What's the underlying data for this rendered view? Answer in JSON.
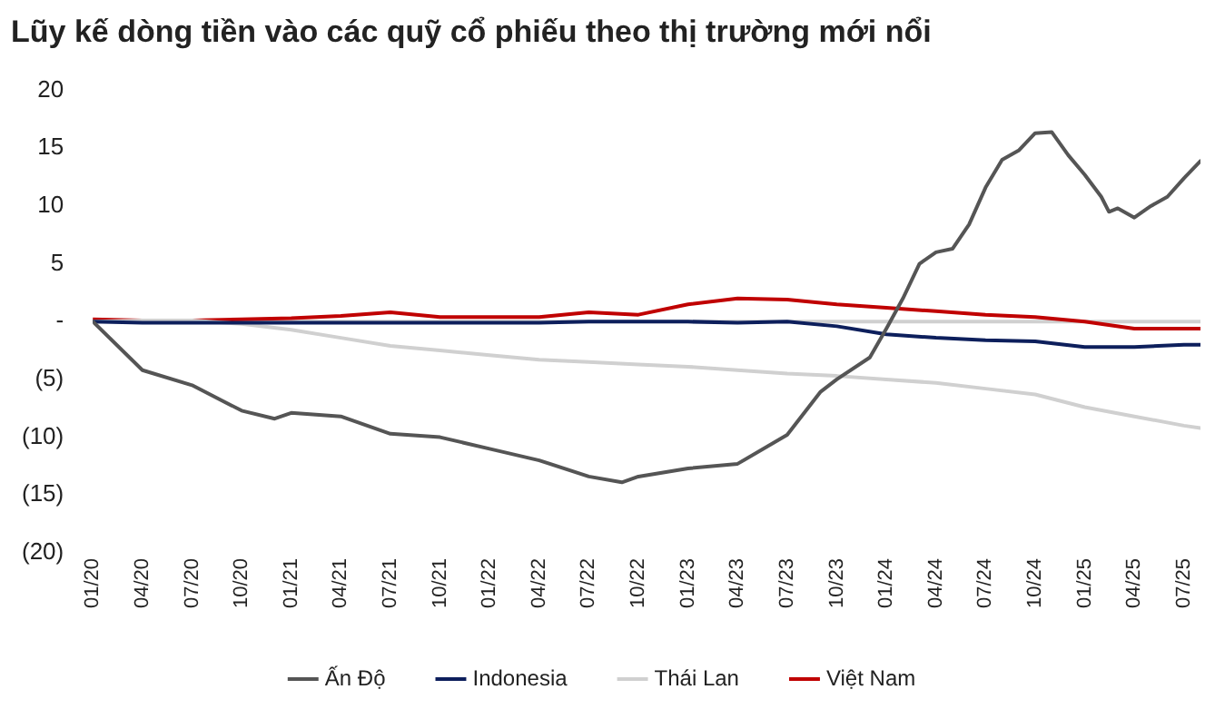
{
  "chart_data": {
    "type": "line",
    "title": "Lũy kế dòng tiền vào các quỹ cổ phiếu theo thị trường mới nổi",
    "x": [
      "2020-01",
      "2020-04",
      "2020-07",
      "2020-10",
      "2021-01",
      "2021-04",
      "2021-07",
      "2021-10",
      "2022-01",
      "2022-04",
      "2022-07",
      "2022-10",
      "2023-01",
      "2023-04",
      "2023-07",
      "2023-10",
      "2024-01",
      "2024-04",
      "2024-07",
      "2024-10",
      "2025-01",
      "2025-04",
      "2025-07",
      "2025-08"
    ],
    "series": [
      {
        "name": "Ấn Độ",
        "color": "#555555",
        "x": [
          "2020-01",
          "2020-04",
          "2020-07",
          "2020-10",
          "2020-12",
          "2021-01",
          "2021-04",
          "2021-07",
          "2021-10",
          "2022-01",
          "2022-04",
          "2022-07",
          "2022-09",
          "2022-10",
          "2023-01",
          "2023-04",
          "2023-07",
          "2023-09",
          "2023-10",
          "2023-12",
          "2024-01",
          "2024-02",
          "2024-03",
          "2024-04",
          "2024-05",
          "2024-06",
          "2024-07",
          "2024-08",
          "2024-09",
          "2024-10",
          "2024-11",
          "2024-12",
          "2025-01",
          "2025-02",
          "2025-02-15",
          "2025-03",
          "2025-04",
          "2025-05",
          "2025-06",
          "2025-07",
          "2025-08"
        ],
        "values": [
          0,
          -4.2,
          -5.5,
          -7.7,
          -8.4,
          -7.9,
          -8.2,
          -9.7,
          -10,
          -11,
          -12,
          -13.4,
          -13.9,
          -13.4,
          -12.7,
          -12.3,
          -9.8,
          -6.1,
          -5,
          -3.1,
          -0.6,
          2,
          5,
          6,
          6.3,
          8.4,
          11.6,
          14,
          14.8,
          16.3,
          16.4,
          14.4,
          12.7,
          10.8,
          9.5,
          9.8,
          9,
          10,
          10.8,
          12.4,
          13.9
        ]
      },
      {
        "name": "Indonesia",
        "color": "#0d1f5c",
        "values": [
          0,
          -0.1,
          -0.1,
          -0.1,
          -0.1,
          -0.1,
          -0.1,
          -0.1,
          -0.1,
          -0.1,
          0,
          0,
          0,
          -0.1,
          0,
          -0.4,
          -1.1,
          -1.4,
          -1.6,
          -1.7,
          -2.2,
          -2.2,
          -2,
          -2
        ]
      },
      {
        "name": "Thái Lan",
        "color": "#d0d0d0",
        "values": [
          0,
          0.1,
          0.1,
          -0.2,
          -0.7,
          -1.4,
          -2.1,
          -2.5,
          -2.9,
          -3.3,
          -3.5,
          -3.7,
          -3.9,
          -4.2,
          -4.5,
          -4.7,
          -5,
          -5.3,
          -5.8,
          -6.3,
          -7.4,
          -8.2,
          -9,
          -9.2
        ]
      },
      {
        "name": "Việt Nam",
        "color": "#c00000",
        "values": [
          0.2,
          0.1,
          0.1,
          0.2,
          0.3,
          0.5,
          0.8,
          0.4,
          0.4,
          0.4,
          0.8,
          0.6,
          1.5,
          2,
          1.9,
          1.5,
          1.2,
          0.9,
          0.6,
          0.4,
          0,
          -0.6,
          -0.6,
          -0.6
        ]
      }
    ],
    "xlim": [
      "2020-01",
      "2025-08"
    ],
    "xticks": [
      {
        "value": "2020-01",
        "label": "01/20"
      },
      {
        "value": "2020-04",
        "label": "04/20"
      },
      {
        "value": "2020-07",
        "label": "07/20"
      },
      {
        "value": "2020-10",
        "label": "10/20"
      },
      {
        "value": "2021-01",
        "label": "01/21"
      },
      {
        "value": "2021-04",
        "label": "04/21"
      },
      {
        "value": "2021-07",
        "label": "07/21"
      },
      {
        "value": "2021-10",
        "label": "10/21"
      },
      {
        "value": "2022-01",
        "label": "01/22"
      },
      {
        "value": "2022-04",
        "label": "04/22"
      },
      {
        "value": "2022-07",
        "label": "07/22"
      },
      {
        "value": "2022-10",
        "label": "10/22"
      },
      {
        "value": "2023-01",
        "label": "01/23"
      },
      {
        "value": "2023-04",
        "label": "04/23"
      },
      {
        "value": "2023-07",
        "label": "07/23"
      },
      {
        "value": "2023-10",
        "label": "10/23"
      },
      {
        "value": "2024-01",
        "label": "01/24"
      },
      {
        "value": "2024-04",
        "label": "04/24"
      },
      {
        "value": "2024-07",
        "label": "07/24"
      },
      {
        "value": "2024-10",
        "label": "10/24"
      },
      {
        "value": "2025-01",
        "label": "01/25"
      },
      {
        "value": "2025-04",
        "label": "04/25"
      },
      {
        "value": "2025-07",
        "label": "07/25"
      }
    ],
    "ylim": [
      -20,
      20
    ],
    "yticks": [
      {
        "value": -20,
        "label": "(20)"
      },
      {
        "value": -15,
        "label": "(15)"
      },
      {
        "value": -10,
        "label": "(10)"
      },
      {
        "value": -5,
        "label": "(5)"
      },
      {
        "value": 0,
        "label": "-"
      },
      5,
      10,
      15,
      20
    ],
    "ref_lines": [
      {
        "axis": "y",
        "value": 0,
        "color": "#d0d0d0"
      }
    ],
    "legend": "bottom",
    "marker": "none",
    "line_style": "solid"
  }
}
